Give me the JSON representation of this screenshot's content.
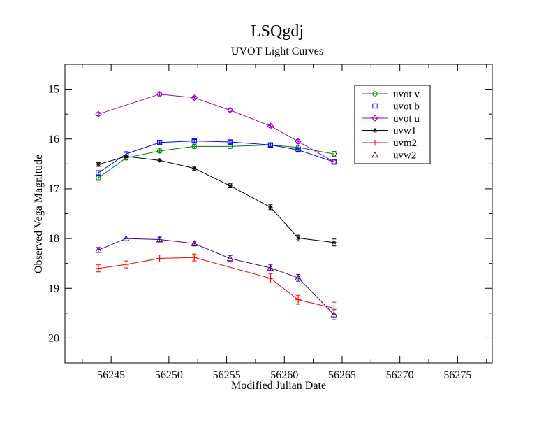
{
  "chart_data": {
    "type": "line",
    "title": "LSQgdj",
    "subtitle": "UVOT Light Curves",
    "xlabel": "Modified Julian Date",
    "ylabel": "Observed Vega Magnitude",
    "xlim": [
      56241,
      56278
    ],
    "ylim": [
      20.5,
      14.5
    ],
    "y_inverted": true,
    "xticks": [
      56245,
      56250,
      56255,
      56260,
      56265,
      56270,
      56275
    ],
    "xtick_labels": [
      "56245",
      "56250",
      "56255",
      "56260",
      "56265",
      "56270",
      "56275"
    ],
    "yticks": [
      15,
      16,
      17,
      18,
      19,
      20
    ],
    "ytick_labels": [
      "15",
      "16",
      "17",
      "18",
      "19",
      "20"
    ],
    "legend_position": "top-right",
    "series": [
      {
        "name": "uvot v",
        "color": "#008000",
        "marker": "circle",
        "x": [
          56243.9,
          56246.3,
          56249.2,
          56252.2,
          56255.3,
          56258.8,
          56261.2,
          56264.3
        ],
        "y": [
          16.78,
          16.38,
          16.24,
          16.15,
          16.15,
          16.12,
          16.17,
          16.3
        ],
        "err": [
          0.05,
          0.04,
          0.04,
          0.04,
          0.04,
          0.04,
          0.04,
          0.05
        ]
      },
      {
        "name": "uvot b",
        "color": "#0000ff",
        "marker": "square",
        "x": [
          56243.9,
          56246.3,
          56249.2,
          56252.2,
          56255.3,
          56258.8,
          56261.2,
          56264.3
        ],
        "y": [
          16.68,
          16.3,
          16.07,
          16.04,
          16.06,
          16.12,
          16.22,
          16.46
        ],
        "err": [
          0.04,
          0.03,
          0.03,
          0.03,
          0.03,
          0.03,
          0.03,
          0.04
        ]
      },
      {
        "name": "uvot u",
        "color": "#a000c8",
        "marker": "diamond",
        "x": [
          56243.9,
          56249.2,
          56252.2,
          56255.3,
          56258.8,
          56261.2,
          56264.3
        ],
        "y": [
          15.5,
          15.1,
          15.17,
          15.42,
          15.74,
          16.05,
          16.46
        ],
        "err": [
          0.03,
          0.03,
          0.03,
          0.03,
          0.03,
          0.04,
          0.05
        ]
      },
      {
        "name": "uvw1",
        "color": "#000000",
        "marker": "star",
        "x": [
          56243.9,
          56246.3,
          56249.2,
          56252.2,
          56255.3,
          56258.8,
          56261.2,
          56264.3
        ],
        "y": [
          16.51,
          16.35,
          16.43,
          16.59,
          16.94,
          17.37,
          17.99,
          18.08
        ],
        "err": [
          0.04,
          0.03,
          0.03,
          0.04,
          0.04,
          0.05,
          0.06,
          0.07
        ]
      },
      {
        "name": "uvm2",
        "color": "#ff0000",
        "marker": "plus",
        "x": [
          56243.9,
          56246.3,
          56249.2,
          56252.2,
          56258.8,
          56261.2,
          56264.3
        ],
        "y": [
          18.6,
          18.52,
          18.4,
          18.38,
          18.8,
          19.23,
          19.4
        ],
        "err": [
          0.07,
          0.07,
          0.07,
          0.07,
          0.09,
          0.09,
          0.12
        ]
      },
      {
        "name": "uvw2",
        "color": "#40007f",
        "marker": "triangle",
        "x": [
          56243.9,
          56246.3,
          56249.2,
          56252.2,
          56255.3,
          56258.8,
          56261.2,
          56264.3
        ],
        "y": [
          18.23,
          18.0,
          18.02,
          18.1,
          18.4,
          18.59,
          18.79,
          19.53
        ],
        "err": [
          0.05,
          0.05,
          0.05,
          0.05,
          0.06,
          0.06,
          0.07,
          0.1
        ]
      }
    ]
  }
}
